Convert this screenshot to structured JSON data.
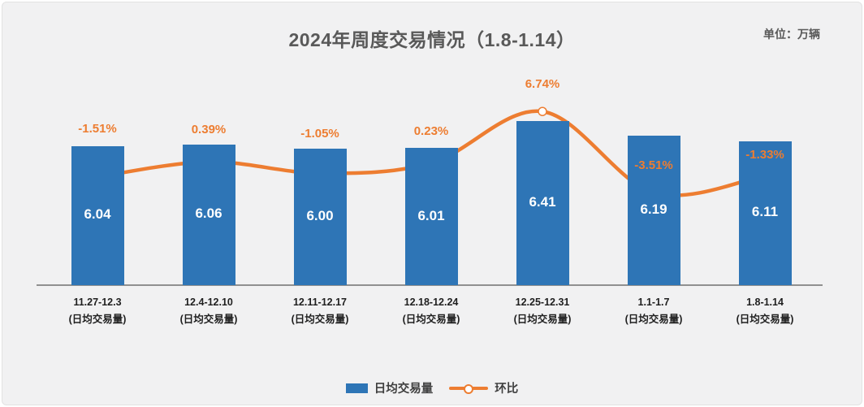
{
  "title": "2024年周度交易情况（1.8-1.14）",
  "unit_label": "单位：万辆",
  "legend": {
    "bar_label": "日均交易量",
    "line_label": "环比"
  },
  "colors": {
    "bar": "#2E75B6",
    "line": "#ED7D31",
    "pct_label": "#ED7D31",
    "value_label": "#FFFFFF",
    "title": "#595959",
    "axis": "#909090",
    "panel_background": "#F1F1F2"
  },
  "chart_data": {
    "type": "bar",
    "combo": "bar + smooth line (secondary percent axis)",
    "categories": [
      "11.27-12.3",
      "12.4-12.10",
      "12.11-12.17",
      "12.18-12.24",
      "12.25-12.31",
      "1.1-1.7",
      "1.8-1.14"
    ],
    "category_sublabel": "(日均交易量)",
    "series": [
      {
        "name": "日均交易量",
        "type": "bar",
        "values": [
          6.04,
          6.06,
          6.0,
          6.01,
          6.41,
          6.19,
          6.11
        ],
        "value_labels": [
          "6.04",
          "6.06",
          "6.00",
          "6.01",
          "6.41",
          "6.19",
          "6.11"
        ]
      },
      {
        "name": "环比",
        "type": "line",
        "values_pct": [
          -1.51,
          0.39,
          -1.05,
          0.23,
          6.74,
          -3.51,
          -1.33
        ],
        "point_labels": [
          "-1.51%",
          "0.39%",
          "-1.05%",
          "0.23%",
          "6.74%",
          "-3.51%",
          "-1.33%"
        ]
      }
    ],
    "title": "2024年周度交易情况（1.8-1.14）",
    "unit": "单位：万辆",
    "legend_position": "bottom-center",
    "grid": false,
    "value_labels_inside_bars": true
  }
}
